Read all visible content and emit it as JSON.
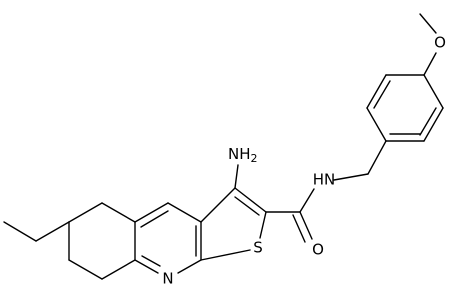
{
  "atoms": {
    "amine": {
      "text": "NH",
      "subscript": "2"
    },
    "amide_n": "HN",
    "carbonyl_o": "O",
    "methoxy_o": "O",
    "sulfur": "S",
    "pyridine_n": "N"
  }
}
